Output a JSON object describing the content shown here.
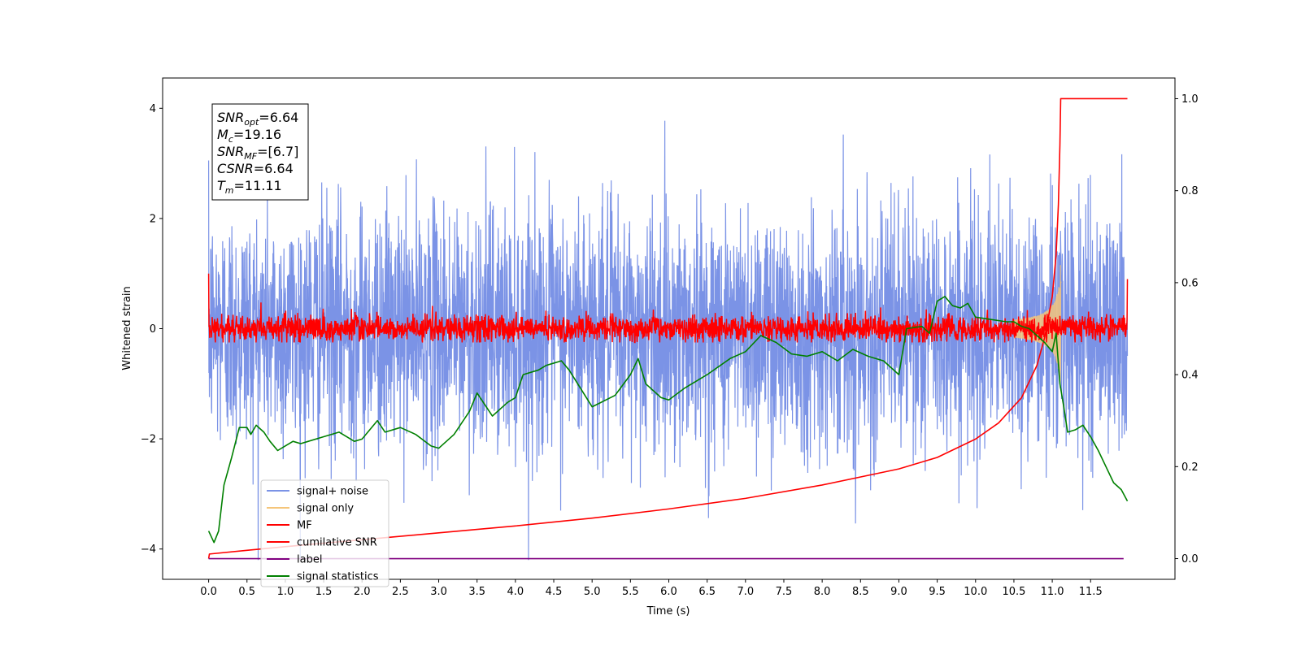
{
  "chart_data": {
    "type": "line",
    "title": "",
    "xlabel": "Time (s)",
    "ylabel": "Whitened strain",
    "xlim": [
      -0.6,
      12.6
    ],
    "ylim": [
      -4.55,
      4.55
    ],
    "y2lim": [
      -0.045,
      1.045
    ],
    "x_ticks": [
      0.0,
      0.5,
      1.0,
      1.5,
      2.0,
      2.5,
      3.0,
      3.5,
      4.0,
      4.5,
      5.0,
      5.5,
      6.0,
      6.5,
      7.0,
      7.5,
      8.0,
      8.5,
      9.0,
      9.5,
      10.0,
      10.5,
      11.0,
      11.5
    ],
    "x_tick_labels": [
      "0.0",
      "0.5",
      "1.0",
      "1.5",
      "2.0",
      "2.5",
      "3.0",
      "3.5",
      "4.0",
      "4.5",
      "5.0",
      "5.5",
      "6.0",
      "6.5",
      "7.0",
      "7.5",
      "8.0",
      "8.5",
      "9.0",
      "9.5",
      "10.0",
      "10.5",
      "11.0",
      "11.5"
    ],
    "y_ticks": [
      -4,
      -2,
      0,
      2,
      4
    ],
    "y_tick_labels": [
      "−4",
      "−2",
      "0",
      "2",
      "4"
    ],
    "y2_ticks": [
      0.0,
      0.2,
      0.4,
      0.6,
      0.8,
      1.0
    ],
    "y2_tick_labels": [
      "0.0",
      "0.2",
      "0.4",
      "0.6",
      "0.8",
      "1.0"
    ],
    "grid": false,
    "legend_position": "lower-left",
    "annotations": [
      {
        "key": "SNR",
        "sub": "opt",
        "value": "=6.64"
      },
      {
        "key": "M",
        "sub": "c",
        "value": "=19.16"
      },
      {
        "key": "SNR",
        "sub": "MF",
        "value": "=[6.7]"
      },
      {
        "key": "CSNR",
        "sub": "",
        "value": "=6.64"
      },
      {
        "key": "T",
        "sub": "m",
        "value": "=11.11"
      }
    ],
    "series": [
      {
        "name": "signal+ noise",
        "axis": "left",
        "color": "#7b93e6",
        "approximate_noise": {
          "x_range": [
            0.0,
            11.98
          ],
          "mean": 0.0,
          "std": 1.1,
          "min": -4.2,
          "max": 4.1
        }
      },
      {
        "name": "signal only",
        "axis": "left",
        "color": "#f5c57a",
        "approximate_chirp": {
          "x_range": [
            10.5,
            11.12
          ],
          "peak_amplitude": 1.3,
          "peak_x": 11.11
        }
      },
      {
        "name": "MF",
        "axis": "left",
        "color": "#ff0000",
        "approximate_noise": {
          "x_range": [
            0.0,
            11.98
          ],
          "mean": 0.0,
          "std": 0.12,
          "min": -0.25,
          "max": 0.55,
          "start_value": 1.0,
          "end_value": 0.9
        }
      },
      {
        "name": "cumilative SNR",
        "axis": "right",
        "color": "#ff0000",
        "x": [
          0.0,
          0.01,
          0.5,
          1.0,
          2.0,
          3.0,
          4.0,
          5.0,
          6.0,
          7.0,
          8.0,
          9.0,
          9.5,
          10.0,
          10.3,
          10.6,
          10.8,
          10.9,
          11.0,
          11.05,
          11.08,
          11.1,
          11.11,
          11.2,
          11.98
        ],
        "values": [
          0.0,
          0.01,
          0.018,
          0.026,
          0.041,
          0.056,
          0.071,
          0.088,
          0.108,
          0.131,
          0.16,
          0.195,
          0.22,
          0.26,
          0.295,
          0.35,
          0.42,
          0.48,
          0.57,
          0.66,
          0.77,
          0.9,
          1.0,
          1.0,
          1.0
        ]
      },
      {
        "name": "label",
        "axis": "right",
        "color": "#800080",
        "x": [
          0.0,
          11.93
        ],
        "values": [
          0.0,
          0.0
        ]
      },
      {
        "name": "signal statistics",
        "axis": "right",
        "color": "#008000",
        "x": [
          0.0,
          0.07,
          0.13,
          0.2,
          0.3,
          0.4,
          0.5,
          0.55,
          0.62,
          0.72,
          0.8,
          0.9,
          1.0,
          1.1,
          1.2,
          1.3,
          1.5,
          1.7,
          1.9,
          2.0,
          2.2,
          2.3,
          2.5,
          2.7,
          2.9,
          3.0,
          3.2,
          3.4,
          3.5,
          3.7,
          3.9,
          4.0,
          4.1,
          4.3,
          4.4,
          4.5,
          4.6,
          4.7,
          5.0,
          5.3,
          5.5,
          5.6,
          5.7,
          5.9,
          6.0,
          6.2,
          6.5,
          6.8,
          7.0,
          7.2,
          7.4,
          7.6,
          7.8,
          8.0,
          8.2,
          8.4,
          8.6,
          8.8,
          9.0,
          9.1,
          9.3,
          9.4,
          9.5,
          9.6,
          9.7,
          9.8,
          9.9,
          10.0,
          10.2,
          10.4,
          10.5,
          10.6,
          10.7,
          10.8,
          10.9,
          11.0,
          11.05,
          11.1,
          11.15,
          11.2,
          11.3,
          11.4,
          11.5,
          11.6,
          11.7,
          11.8,
          11.9,
          11.98
        ],
        "values": [
          0.06,
          0.035,
          0.06,
          0.16,
          0.22,
          0.285,
          0.285,
          0.27,
          0.29,
          0.275,
          0.255,
          0.235,
          0.245,
          0.255,
          0.25,
          0.255,
          0.265,
          0.275,
          0.255,
          0.26,
          0.3,
          0.275,
          0.285,
          0.27,
          0.245,
          0.24,
          0.27,
          0.32,
          0.36,
          0.31,
          0.34,
          0.35,
          0.4,
          0.41,
          0.42,
          0.425,
          0.43,
          0.41,
          0.33,
          0.355,
          0.4,
          0.435,
          0.38,
          0.35,
          0.345,
          0.37,
          0.4,
          0.435,
          0.45,
          0.485,
          0.47,
          0.445,
          0.44,
          0.45,
          0.43,
          0.455,
          0.44,
          0.43,
          0.4,
          0.5,
          0.505,
          0.49,
          0.56,
          0.57,
          0.55,
          0.545,
          0.555,
          0.525,
          0.52,
          0.515,
          0.515,
          0.505,
          0.5,
          0.485,
          0.47,
          0.45,
          0.49,
          0.38,
          0.33,
          0.275,
          0.28,
          0.29,
          0.265,
          0.235,
          0.2,
          0.165,
          0.15,
          0.125
        ]
      }
    ]
  }
}
